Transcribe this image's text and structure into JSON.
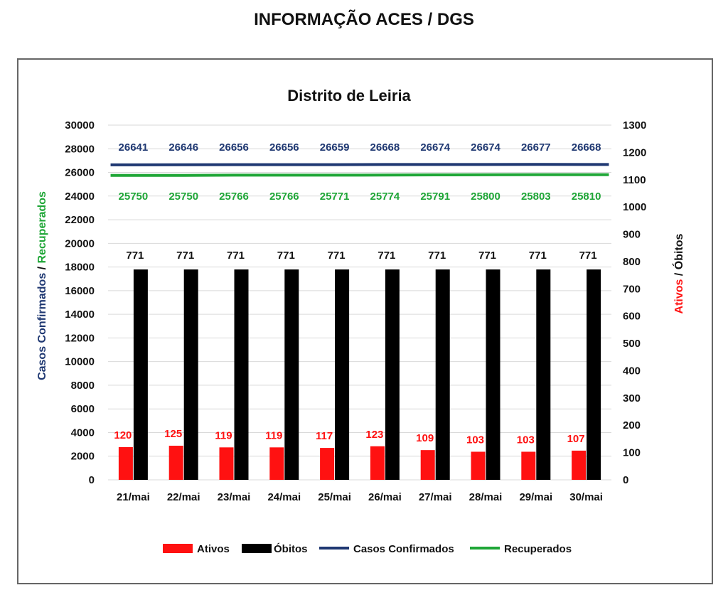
{
  "page_title": "INFORMAÇÃO ACES / DGS",
  "colors": {
    "ativos": "#ff1111",
    "obitos": "#000000",
    "confirmados": "#1f3872",
    "recuperados": "#1fa637"
  },
  "chart_data": {
    "type": "bar",
    "title": "Distrito de Leiria",
    "categories": [
      "21/mai",
      "22/mai",
      "23/mai",
      "24/mai",
      "25/mai",
      "26/mai",
      "27/mai",
      "28/mai",
      "29/mai",
      "30/mai"
    ],
    "y_left": {
      "label_part1": "Casos Confirmados",
      "label_sep": " / ",
      "label_part2": "Recuperados",
      "ylim": [
        0,
        30000
      ],
      "ticks": [
        "0",
        "2000",
        "4000",
        "6000",
        "8000",
        "10000",
        "12000",
        "14000",
        "16000",
        "18000",
        "20000",
        "22000",
        "24000",
        "26000",
        "28000",
        "30000"
      ]
    },
    "y_right": {
      "label_part1": "Ativos",
      "label_sep": " / ",
      "label_part2": "Óbitos",
      "ylim": [
        0,
        1300
      ],
      "ticks": [
        "0",
        "100",
        "200",
        "300",
        "400",
        "500",
        "600",
        "700",
        "800",
        "900",
        "1000",
        "1100",
        "1200",
        "1300"
      ]
    },
    "series": [
      {
        "name": "Ativos",
        "type": "bar",
        "axis": "right",
        "values": [
          120,
          125,
          119,
          119,
          117,
          123,
          109,
          103,
          103,
          107
        ]
      },
      {
        "name": "Óbitos",
        "type": "bar",
        "axis": "right",
        "values": [
          771,
          771,
          771,
          771,
          771,
          771,
          771,
          771,
          771,
          771
        ]
      },
      {
        "name": "Casos Confirmados",
        "type": "line",
        "axis": "left",
        "values": [
          26641,
          26646,
          26656,
          26656,
          26659,
          26668,
          26674,
          26674,
          26677,
          26668
        ]
      },
      {
        "name": "Recuperados",
        "type": "line",
        "axis": "left",
        "values": [
          25750,
          25750,
          25766,
          25766,
          25771,
          25774,
          25791,
          25800,
          25803,
          25810
        ]
      }
    ],
    "grid": true,
    "legend_position": "bottom"
  }
}
